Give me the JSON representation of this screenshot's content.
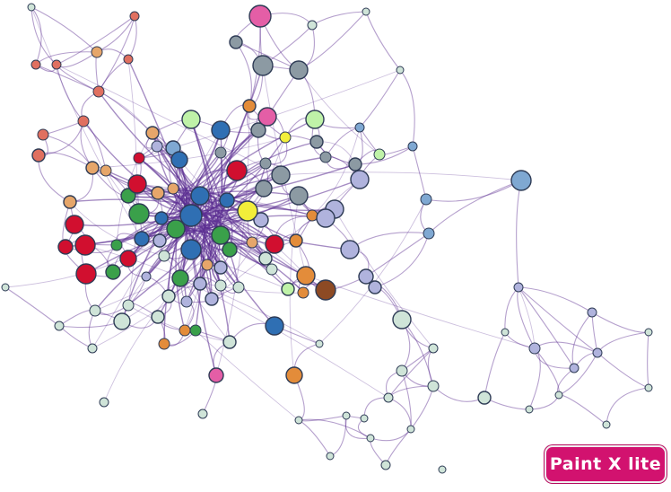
{
  "watermark": {
    "text": "Paint X lite",
    "color": "#d2126f"
  },
  "colors": {
    "edge": "#5b2d91",
    "node_stroke": "#2e3b55",
    "palette": [
      "#d10f2f",
      "#3aa04a",
      "#2f6fb3",
      "#8c9aa3",
      "#e38c3a",
      "#e6a66a",
      "#b0b3dd",
      "#cfe4d8",
      "#e45ea6",
      "#f2ee3a",
      "#8d4a24",
      "#7fa8d2",
      "#e07060",
      "#bff2a8"
    ]
  }
}
